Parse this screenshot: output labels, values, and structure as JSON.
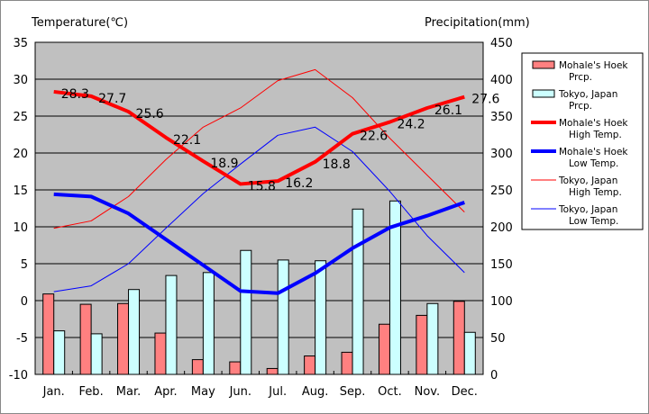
{
  "chart_data": {
    "type": "bar+line",
    "ylabel_left": "Temperature(℃)",
    "ylabel_right": "Precipitation(mm)",
    "ylim_left": [
      -10,
      35
    ],
    "ylim_right": [
      0,
      450
    ],
    "yticks_left": [
      "35",
      "30",
      "25",
      "20",
      "15",
      "10",
      "5",
      "0",
      "-5",
      "-10"
    ],
    "yticks_right": [
      "450",
      "400",
      "350",
      "300",
      "250",
      "200",
      "150",
      "100",
      "50",
      "0"
    ],
    "grid": true,
    "legend_position": "right",
    "categories": [
      "Jan.",
      "Feb.",
      "Mar.",
      "Apr.",
      "May",
      "Jun.",
      "Jul.",
      "Aug.",
      "Sep.",
      "Oct.",
      "Nov.",
      "Dec."
    ],
    "bars": [
      {
        "name": "Mohale's Hoek Prcp.",
        "color": "#ff8080",
        "values": [
          109,
          95,
          96,
          56,
          20,
          17,
          8,
          25,
          30,
          68,
          80,
          99
        ]
      },
      {
        "name": "Tokyo, Japan Prcp.",
        "color": "#ccffff",
        "values": [
          59,
          55,
          115,
          134,
          138,
          168,
          155,
          154,
          224,
          235,
          96,
          57
        ]
      }
    ],
    "lines": [
      {
        "name": "Mohale's Hoek High Temp.",
        "color": "#ff0000",
        "width": 4,
        "labels": true,
        "values": [
          28.3,
          27.7,
          25.6,
          22.1,
          18.9,
          15.8,
          16.2,
          18.8,
          22.6,
          24.2,
          26.1,
          27.6
        ]
      },
      {
        "name": "Mohale's Hoek Low Temp.",
        "color": "#0000ff",
        "width": 4,
        "labels": false,
        "values": [
          14.4,
          14.1,
          11.8,
          8.3,
          4.8,
          1.3,
          1.0,
          3.7,
          7.1,
          9.9,
          11.5,
          13.3
        ]
      },
      {
        "name": "Tokyo, Japan High Temp.",
        "color": "#ff0000",
        "width": 1,
        "labels": false,
        "values": [
          9.8,
          10.8,
          14.1,
          19.1,
          23.5,
          26.1,
          29.8,
          31.3,
          27.5,
          22.0,
          17.0,
          12.0
        ]
      },
      {
        "name": "Tokyo, Japan Low Temp.",
        "color": "#0000ff",
        "width": 1,
        "labels": false,
        "values": [
          1.2,
          2.0,
          5.0,
          9.8,
          14.5,
          18.5,
          22.4,
          23.5,
          20.2,
          14.8,
          8.8,
          3.8
        ]
      }
    ],
    "legend": [
      {
        "line1": "Mohale's Hoek",
        "line2": "Prcp."
      },
      {
        "line1": "Tokyo, Japan",
        "line2": "Prcp."
      },
      {
        "line1": "Mohale's Hoek",
        "line2": "High Temp."
      },
      {
        "line1": "Mohale's Hoek",
        "line2": "Low Temp."
      },
      {
        "line1": "Tokyo, Japan",
        "line2": "High Temp."
      },
      {
        "line1": "Tokyo, Japan",
        "line2": "Low Temp."
      }
    ]
  }
}
